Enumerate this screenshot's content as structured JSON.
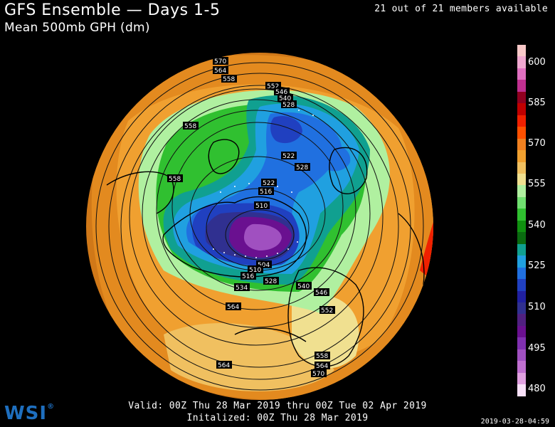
{
  "header": {
    "title": "GFS Ensemble — Days 1-5",
    "subtitle": "Mean 500mb GPH (dm)",
    "members": "21 out of 21 members available"
  },
  "footer": {
    "valid": "Valid: 00Z Thu 28 Mar 2019 thru 00Z Tue 02 Apr 2019",
    "initialized": "Initalized: 00Z Thu 28 Mar 2019",
    "timestamp": "2019-03-28-04:59",
    "logo": "WSI"
  },
  "colorbar": {
    "labels": [
      "600",
      "585",
      "570",
      "555",
      "540",
      "525",
      "510",
      "495",
      "480"
    ],
    "colors": [
      "#f8c8c8",
      "#f0a8d0",
      "#e070c0",
      "#c03090",
      "#900020",
      "#c00000",
      "#f02000",
      "#ff5000",
      "#f08020",
      "#f0a030",
      "#f0c060",
      "#f0e090",
      "#b0f0a0",
      "#70e070",
      "#30c030",
      "#109010",
      "#0a6a10",
      "#10a090",
      "#20a0e0",
      "#2070e0",
      "#2040c0",
      "#2020a0",
      "#303090",
      "#502080",
      "#6a1090",
      "#8030b0",
      "#a050c0",
      "#c070d0",
      "#e0a0e0",
      "#f8e0f8"
    ]
  },
  "contour_labels": [
    {
      "text": "570"
    },
    {
      "text": "564"
    },
    {
      "text": "558"
    },
    {
      "text": "552"
    },
    {
      "text": "546"
    },
    {
      "text": "540"
    },
    {
      "text": "528"
    },
    {
      "text": "558"
    },
    {
      "text": "522"
    },
    {
      "text": "528"
    },
    {
      "text": "558"
    },
    {
      "text": "522"
    },
    {
      "text": "516"
    },
    {
      "text": "510"
    },
    {
      "text": "504"
    },
    {
      "text": "510"
    },
    {
      "text": "516"
    },
    {
      "text": "528"
    },
    {
      "text": "534"
    },
    {
      "text": "540"
    },
    {
      "text": "546"
    },
    {
      "text": "564"
    },
    {
      "text": "552"
    },
    {
      "text": "558"
    },
    {
      "text": "564"
    },
    {
      "text": "564"
    },
    {
      "text": "570"
    }
  ]
}
